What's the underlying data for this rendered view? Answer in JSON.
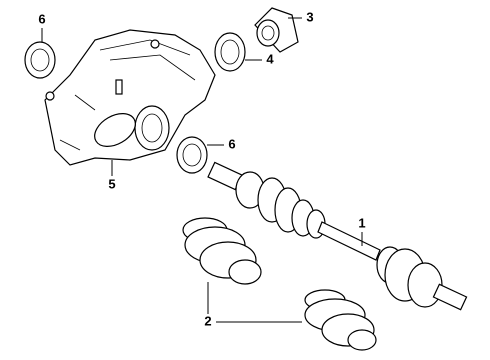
{
  "callouts": [
    {
      "label": "6"
    },
    {
      "label": "3"
    },
    {
      "label": "4"
    },
    {
      "label": "5"
    },
    {
      "label": "6"
    },
    {
      "label": "1"
    },
    {
      "label": "2"
    }
  ]
}
